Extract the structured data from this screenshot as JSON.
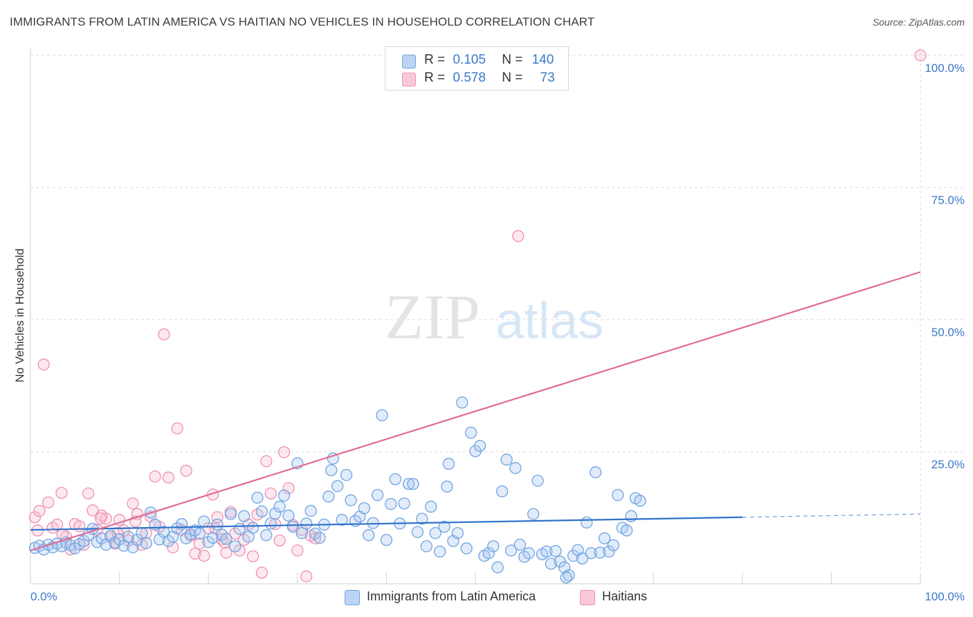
{
  "title": "IMMIGRANTS FROM LATIN AMERICA VS HAITIAN NO VEHICLES IN HOUSEHOLD CORRELATION CHART",
  "source": "Source: ZipAtlas.com",
  "watermark": {
    "zip": "ZIP",
    "atlas": "atlas"
  },
  "colors": {
    "blue": "#6fa3e0",
    "blue_fill": "#a9c8f0",
    "blue_line": "#2e72c9",
    "pink": "#ef8fb0",
    "pink_fill": "#f6bfd2",
    "pink_line": "#e06a95",
    "axis_text": "#3a78c9",
    "grid": "#d9d9d9"
  },
  "stats": {
    "series1": {
      "r_label": "R =",
      "r_value": "0.105",
      "n_label": "N =",
      "n_value": "140"
    },
    "series2": {
      "r_label": "R =",
      "r_value": "0.578",
      "n_label": "N =",
      "n_value": "73"
    }
  },
  "legend": {
    "series1": "Immigrants from Latin America",
    "series2": "Haitians"
  },
  "chart_data": {
    "type": "scatter",
    "title": "IMMIGRANTS FROM LATIN AMERICA VS HAITIAN NO VEHICLES IN HOUSEHOLD CORRELATION CHART",
    "xlabel": "",
    "ylabel": "No Vehicles in Household",
    "xlim": [
      0,
      100
    ],
    "ylim": [
      0,
      100
    ],
    "x_tick_labels": [
      "0.0%",
      "100.0%"
    ],
    "y_tick_labels": [
      "25.0%",
      "50.0%",
      "75.0%",
      "100.0%"
    ],
    "y_ticks": [
      25,
      50,
      75,
      100
    ],
    "grid": true,
    "series": [
      {
        "name": "Immigrants from Latin America",
        "color": "#6fa3e0",
        "trendline": {
          "x0": 0,
          "y0": 10.2,
          "x1": 80,
          "y1": 12.6,
          "dashed_to_x": 100,
          "dashed_to_y": 13.2
        },
        "points": [
          [
            0.5,
            6.8
          ],
          [
            1,
            7.2
          ],
          [
            1.5,
            6.5
          ],
          [
            2,
            7.4
          ],
          [
            2.5,
            6.9
          ],
          [
            3,
            7.6
          ],
          [
            3.5,
            7.1
          ],
          [
            4,
            7.8
          ],
          [
            4.5,
            7.3
          ],
          [
            5,
            6.7
          ],
          [
            5.5,
            7.5
          ],
          [
            6,
            8.1
          ],
          [
            6.5,
            9.2
          ],
          [
            7,
            10.4
          ],
          [
            7.5,
            7.9
          ],
          [
            8,
            8.6
          ],
          [
            8.5,
            7.4
          ],
          [
            9,
            9.1
          ],
          [
            9.5,
            7.8
          ],
          [
            10,
            8.4
          ],
          [
            10.5,
            7.2
          ],
          [
            11,
            8.9
          ],
          [
            11.5,
            6.9
          ],
          [
            12,
            8.3
          ],
          [
            12.5,
            9.6
          ],
          [
            13,
            7.7
          ],
          [
            13.5,
            13.5
          ],
          [
            14,
            11.2
          ],
          [
            14.5,
            8.4
          ],
          [
            15,
            9.8
          ],
          [
            15.5,
            8.1
          ],
          [
            16,
            8.9
          ],
          [
            16.5,
            10.5
          ],
          [
            17,
            11.3
          ],
          [
            17.5,
            8.6
          ],
          [
            18,
            9.4
          ],
          [
            18.5,
            10.1
          ],
          [
            19,
            9.5
          ],
          [
            19.5,
            11.8
          ],
          [
            20,
            7.9
          ],
          [
            20.5,
            8.7
          ],
          [
            21,
            11.2
          ],
          [
            21.5,
            9.3
          ],
          [
            22,
            8.5
          ],
          [
            22.5,
            13.2
          ],
          [
            23,
            7.1
          ],
          [
            23.5,
            10.4
          ],
          [
            24,
            12.8
          ],
          [
            24.5,
            8.9
          ],
          [
            25,
            10.6
          ],
          [
            25.5,
            16.3
          ],
          [
            26,
            13.7
          ],
          [
            26.5,
            9.2
          ],
          [
            27,
            11.4
          ],
          [
            27.5,
            13.3
          ],
          [
            28,
            14.6
          ],
          [
            28.5,
            16.7
          ],
          [
            29,
            12.9
          ],
          [
            29.5,
            10.8
          ],
          [
            30,
            22.8
          ],
          [
            30.5,
            9.6
          ],
          [
            31,
            11.4
          ],
          [
            31.5,
            13.8
          ],
          [
            32,
            9.5
          ],
          [
            32.5,
            8.7
          ],
          [
            33,
            11.2
          ],
          [
            33.5,
            16.5
          ],
          [
            34,
            23.7
          ],
          [
            34.5,
            18.5
          ],
          [
            35,
            12.1
          ],
          [
            35.5,
            20.6
          ],
          [
            36,
            15.8
          ],
          [
            36.5,
            11.9
          ],
          [
            37,
            12.7
          ],
          [
            37.5,
            14.3
          ],
          [
            38,
            9.2
          ],
          [
            38.5,
            11.5
          ],
          [
            39,
            16.8
          ],
          [
            39.5,
            31.9
          ],
          [
            40,
            8.3
          ],
          [
            40.5,
            15.1
          ],
          [
            41,
            19.8
          ],
          [
            41.5,
            11.4
          ],
          [
            42,
            15.2
          ],
          [
            42.5,
            18.9
          ],
          [
            43,
            18.9
          ],
          [
            43.5,
            9.8
          ],
          [
            44,
            12.3
          ],
          [
            44.5,
            7.1
          ],
          [
            45,
            14.6
          ],
          [
            45.5,
            9.6
          ],
          [
            46,
            6.1
          ],
          [
            46.5,
            10.8
          ],
          [
            47,
            22.7
          ],
          [
            47.5,
            8.1
          ],
          [
            48,
            9.6
          ],
          [
            48.5,
            34.3
          ],
          [
            49,
            6.7
          ],
          [
            49.5,
            28.6
          ],
          [
            50,
            25.1
          ],
          [
            50.5,
            26.1
          ],
          [
            51,
            5.3
          ],
          [
            51.5,
            5.8
          ],
          [
            52,
            7.1
          ],
          [
            52.5,
            3.1
          ],
          [
            53,
            17.5
          ],
          [
            53.5,
            23.5
          ],
          [
            54,
            6.3
          ],
          [
            54.5,
            21.9
          ],
          [
            55,
            7.4
          ],
          [
            55.5,
            5.1
          ],
          [
            56,
            5.8
          ],
          [
            56.5,
            13.2
          ],
          [
            57,
            19.5
          ],
          [
            57.5,
            5.6
          ],
          [
            58,
            6.1
          ],
          [
            58.5,
            3.8
          ],
          [
            59,
            6.2
          ],
          [
            59.5,
            4.2
          ],
          [
            60,
            3.1
          ],
          [
            60.5,
            1.6
          ],
          [
            61,
            5.3
          ],
          [
            61.5,
            6.4
          ],
          [
            62,
            4.8
          ],
          [
            62.5,
            11.6
          ],
          [
            63,
            5.8
          ],
          [
            63.5,
            21.1
          ],
          [
            64,
            5.9
          ],
          [
            64.5,
            8.6
          ],
          [
            65,
            6.1
          ],
          [
            65.5,
            7.3
          ],
          [
            66,
            16.8
          ],
          [
            66.5,
            10.6
          ],
          [
            67,
            10.1
          ],
          [
            67.5,
            12.8
          ],
          [
            68,
            16.2
          ],
          [
            68.5,
            15.7
          ],
          [
            60.2,
            1.2
          ],
          [
            33.8,
            21.5
          ],
          [
            46.8,
            18.4
          ]
        ]
      },
      {
        "name": "Haitians",
        "color": "#ef8fb0",
        "trendline": {
          "x0": 0,
          "y0": 6.3,
          "x1": 100,
          "y1": 59.0
        },
        "points": [
          [
            0.5,
            12.6
          ],
          [
            1,
            13.8
          ],
          [
            1.5,
            41.5
          ],
          [
            2,
            15.4
          ],
          [
            2.5,
            10.6
          ],
          [
            3,
            11.2
          ],
          [
            3.5,
            17.2
          ],
          [
            4,
            8.9
          ],
          [
            4.5,
            6.5
          ],
          [
            5,
            11.3
          ],
          [
            5.5,
            10.9
          ],
          [
            6,
            7.4
          ],
          [
            6.5,
            17.1
          ],
          [
            7,
            13.9
          ],
          [
            7.5,
            10.2
          ],
          [
            8,
            12.9
          ],
          [
            8.5,
            12.3
          ],
          [
            9,
            8.8
          ],
          [
            9.5,
            7.6
          ],
          [
            10,
            12.1
          ],
          [
            10.5,
            10.1
          ],
          [
            11,
            8.2
          ],
          [
            11.5,
            15.2
          ],
          [
            12,
            13.2
          ],
          [
            12.5,
            7.4
          ],
          [
            13,
            9.6
          ],
          [
            13.5,
            12.7
          ],
          [
            14,
            20.3
          ],
          [
            14.5,
            10.8
          ],
          [
            15,
            47.2
          ],
          [
            15.5,
            20.1
          ],
          [
            16,
            6.9
          ],
          [
            16.5,
            29.4
          ],
          [
            17,
            10.2
          ],
          [
            17.5,
            21.4
          ],
          [
            18,
            9.1
          ],
          [
            18.5,
            5.7
          ],
          [
            19,
            7.6
          ],
          [
            19.5,
            5.3
          ],
          [
            20,
            10.5
          ],
          [
            20.5,
            16.9
          ],
          [
            21,
            12.6
          ],
          [
            21.5,
            8.4
          ],
          [
            22,
            5.9
          ],
          [
            22.5,
            13.6
          ],
          [
            23,
            9.5
          ],
          [
            23.5,
            6.3
          ],
          [
            24,
            8.3
          ],
          [
            24.5,
            11.2
          ],
          [
            25,
            5.2
          ],
          [
            25.5,
            13.1
          ],
          [
            26,
            2.1
          ],
          [
            26.5,
            23.2
          ],
          [
            27,
            17.1
          ],
          [
            27.5,
            11.3
          ],
          [
            28,
            8.2
          ],
          [
            28.5,
            24.9
          ],
          [
            29,
            18.1
          ],
          [
            29.5,
            11.1
          ],
          [
            30,
            6.3
          ],
          [
            30.5,
            10.2
          ],
          [
            31,
            1.4
          ],
          [
            31.5,
            9.1
          ],
          [
            32,
            8.6
          ],
          [
            11.8,
            11.8
          ],
          [
            9.8,
            9.6
          ],
          [
            7.9,
            12.4
          ],
          [
            21.8,
            7.8
          ],
          [
            20.8,
            10.4
          ],
          [
            54.8,
            65.8
          ],
          [
            100,
            100
          ],
          [
            0.8,
            10.1
          ],
          [
            3.6,
            9.3
          ]
        ]
      }
    ]
  }
}
